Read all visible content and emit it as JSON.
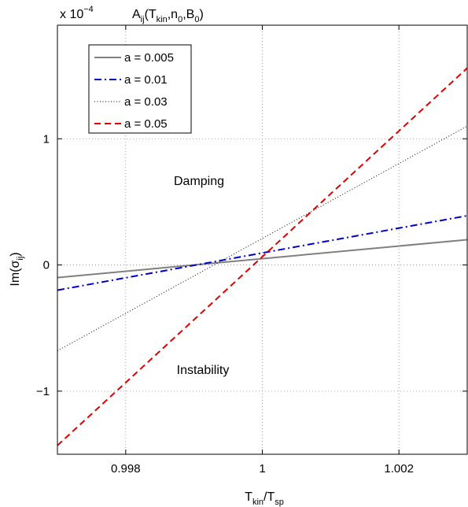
{
  "chart_data": {
    "type": "line",
    "title": "",
    "xlabel": "T_kin/T_sp",
    "ylabel": "Im(σ_ij)",
    "xlim": [
      0.997,
      1.003
    ],
    "ylim": [
      -0.00015,
      0.00019
    ],
    "y_scale_factor_label": "x 10^-4",
    "x_ticks": [
      0.998,
      1,
      1.002
    ],
    "x_tick_labels": [
      "0.998",
      "1",
      "1.002"
    ],
    "y_ticks": [
      -0.0001,
      0,
      0.0001
    ],
    "y_tick_labels": [
      "−1",
      "0",
      "1"
    ],
    "grid": true,
    "legend_position": "top-left",
    "series": [
      {
        "name": "a = 0.005",
        "color": "#808080",
        "style": "solid",
        "x": [
          0.997,
          1.003
        ],
        "y": [
          -1e-05,
          2e-05
        ]
      },
      {
        "name": "a = 0.01",
        "color": "#0000cc",
        "style": "dashdot",
        "x": [
          0.997,
          1.003
        ],
        "y": [
          -2e-05,
          3.9e-05
        ]
      },
      {
        "name": "a = 0.03",
        "color": "#000000",
        "style": "dotted",
        "x": [
          0.997,
          1.003
        ],
        "y": [
          -6.8e-05,
          0.00011
        ]
      },
      {
        "name": "a = 0.05",
        "color": "#e00000",
        "style": "dashed",
        "x": [
          0.997,
          1.003
        ],
        "y": [
          -0.000143,
          0.000156
        ]
      }
    ]
  }
}
